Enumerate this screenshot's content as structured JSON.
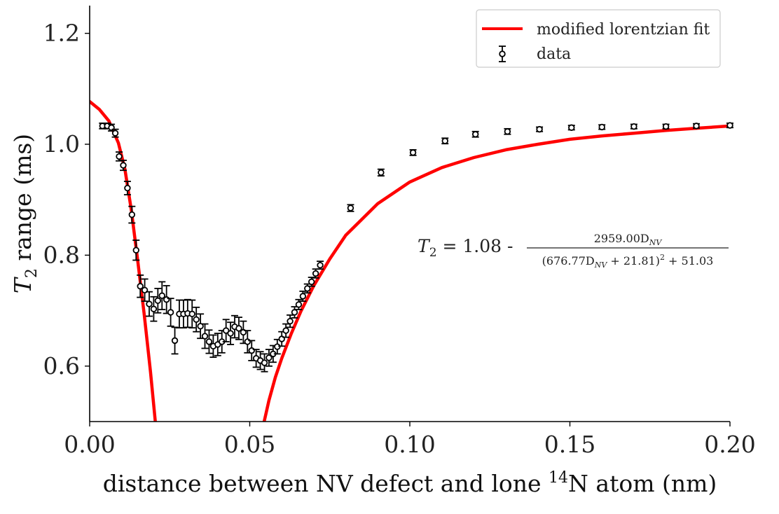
{
  "chart_data": {
    "type": "scatter",
    "xlabel_main": "distance between NV defect and lone ",
    "xlabel_sup": "14",
    "xlabel_tail": "N atom (nm)",
    "ylabel_main": "T",
    "ylabel_sub": "2",
    "ylabel_tail": " range (ms)",
    "xlim": [
      0.0,
      0.2
    ],
    "ylim": [
      0.5,
      1.25
    ],
    "x_ticks": [
      "0.00",
      "0.05",
      "0.10",
      "0.15",
      "0.20"
    ],
    "x_tick_values": [
      0.0,
      0.05,
      0.1,
      0.15,
      0.2
    ],
    "y_ticks": [
      "0.6",
      "0.8",
      "1.0",
      "1.2"
    ],
    "y_tick_values": [
      0.6,
      0.8,
      1.0,
      1.2
    ],
    "legend_position": "top-right",
    "legend": [
      {
        "label": "modified lorentzian fit",
        "kind": "line"
      },
      {
        "label": "data",
        "kind": "errorbar"
      }
    ],
    "colors": {
      "fit": "#ff0000",
      "data_edge": "#000000",
      "data_face": "#ffffff"
    },
    "equation": {
      "lhs": "T",
      "lhs_sub": "2",
      "eq_const": " = 1.08 - ",
      "numerator": "2959.00D",
      "numerator_sub": "NV",
      "denom_a": "(676.77D",
      "denom_sub": "NV",
      "denom_b": " + 21.81)",
      "denom_sup": "2",
      "denom_c": " + 51.03"
    },
    "fit": {
      "name": "modified lorentzian fit",
      "a": 1.08,
      "b": 2959.0,
      "c": 676.77,
      "d": 21.81,
      "e": 51.03,
      "segments": [
        {
          "x": [
            0.0,
            0.003,
            0.006,
            0.009,
            0.011,
            0.013,
            0.015,
            0.017,
            0.019,
            0.0205
          ],
          "y": [
            1.077,
            1.063,
            1.042,
            1.002,
            0.955,
            0.882,
            0.79,
            0.695,
            0.59,
            0.5
          ]
        },
        {
          "x": [
            0.0545,
            0.056,
            0.058,
            0.06,
            0.063,
            0.066,
            0.07,
            0.075,
            0.08,
            0.09,
            0.1,
            0.11,
            0.12,
            0.13,
            0.14,
            0.15,
            0.16,
            0.17,
            0.18,
            0.19,
            0.2
          ],
          "y": [
            0.5,
            0.538,
            0.58,
            0.614,
            0.659,
            0.699,
            0.745,
            0.793,
            0.836,
            0.893,
            0.932,
            0.958,
            0.976,
            0.99,
            1.0,
            1.009,
            1.015,
            1.02,
            1.025,
            1.029,
            1.033
          ]
        }
      ]
    },
    "series": [
      {
        "name": "data",
        "x": [
          0.004,
          0.0055,
          0.0068,
          0.008,
          0.0092,
          0.0105,
          0.0118,
          0.0132,
          0.0145,
          0.0158,
          0.0172,
          0.0186,
          0.02,
          0.0213,
          0.0226,
          0.024,
          0.0253,
          0.0266,
          0.028,
          0.0293,
          0.0306,
          0.032,
          0.0333,
          0.0346,
          0.036,
          0.0373,
          0.0386,
          0.04,
          0.0413,
          0.0426,
          0.044,
          0.0453,
          0.0466,
          0.048,
          0.0493,
          0.0506,
          0.052,
          0.0533,
          0.0546,
          0.056,
          0.0573,
          0.0586,
          0.06,
          0.0613,
          0.0626,
          0.064,
          0.0653,
          0.0666,
          0.068,
          0.0693,
          0.0706,
          0.072,
          0.0815,
          0.091,
          0.101,
          0.111,
          0.1205,
          0.1305,
          0.1405,
          0.1505,
          0.16,
          0.17,
          0.18,
          0.1895,
          0.2
        ],
        "y": [
          1.033,
          1.033,
          1.03,
          1.02,
          0.978,
          0.962,
          0.921,
          0.873,
          0.809,
          0.744,
          0.737,
          0.712,
          0.703,
          0.718,
          0.727,
          0.72,
          0.697,
          0.646,
          0.694,
          0.694,
          0.695,
          0.694,
          0.684,
          0.672,
          0.654,
          0.644,
          0.636,
          0.639,
          0.644,
          0.664,
          0.659,
          0.671,
          0.668,
          0.661,
          0.644,
          0.628,
          0.614,
          0.61,
          0.606,
          0.615,
          0.622,
          0.635,
          0.649,
          0.664,
          0.681,
          0.697,
          0.711,
          0.726,
          0.74,
          0.752,
          0.767,
          0.782,
          0.885,
          0.949,
          0.985,
          1.006,
          1.018,
          1.023,
          1.027,
          1.03,
          1.031,
          1.032,
          1.032,
          1.033,
          1.034
        ],
        "err": [
          0.005,
          0.005,
          0.006,
          0.007,
          0.008,
          0.009,
          0.012,
          0.015,
          0.018,
          0.02,
          0.02,
          0.022,
          0.022,
          0.022,
          0.025,
          0.025,
          0.025,
          0.024,
          0.025,
          0.025,
          0.025,
          0.025,
          0.022,
          0.022,
          0.022,
          0.021,
          0.02,
          0.02,
          0.02,
          0.02,
          0.02,
          0.02,
          0.02,
          0.02,
          0.02,
          0.018,
          0.016,
          0.016,
          0.016,
          0.015,
          0.015,
          0.013,
          0.013,
          0.012,
          0.011,
          0.01,
          0.009,
          0.009,
          0.008,
          0.008,
          0.008,
          0.007,
          0.006,
          0.006,
          0.005,
          0.005,
          0.005,
          0.005,
          0.004,
          0.004,
          0.004,
          0.004,
          0.004,
          0.004,
          0.004
        ]
      }
    ]
  }
}
